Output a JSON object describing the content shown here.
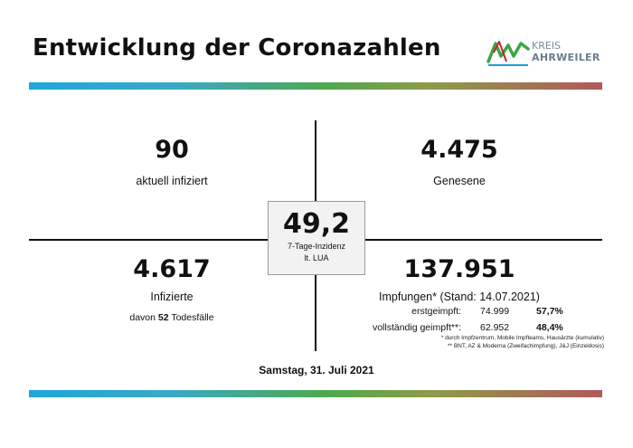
{
  "title": "Entwicklung der Coronazahlen",
  "logo": {
    "line1": "KREIS",
    "line2": "AHRWEILER"
  },
  "colors": {
    "bar_start": "#1ea6dc",
    "bar_mid": "#4ea84e",
    "bar_end": "#b05a5a"
  },
  "top_left": {
    "value": "90",
    "label": "aktuell infiziert"
  },
  "top_right": {
    "value": "4.475",
    "label": "Genesene"
  },
  "center": {
    "value": "49,2",
    "label_line1": "7-Tage-Inzidenz",
    "label_line2": "lt. LUA"
  },
  "bottom_left": {
    "value": "4.617",
    "label": "Infizierte",
    "deaths_prefix": "davon",
    "deaths_count": "52",
    "deaths_suffix": "Todesfälle"
  },
  "bottom_right": {
    "value": "137.951",
    "label": "Impfungen* (Stand: 14.07.2021)",
    "rows": [
      {
        "label": "erstgeimpft:",
        "count": "74.999",
        "percent": "57,7%"
      },
      {
        "label": "vollständig geimpft**:",
        "count": "62.952",
        "percent": "48,4%"
      }
    ],
    "note1": "* durch Impfzentrum, Mobile Impfteams, Hausärzte (kumulativ)",
    "note2": "** BNT, AZ & Moderna (Zweifachimpfung), J&J (Einzeldosis)"
  },
  "date": "Samstag, 31. Juli 2021"
}
